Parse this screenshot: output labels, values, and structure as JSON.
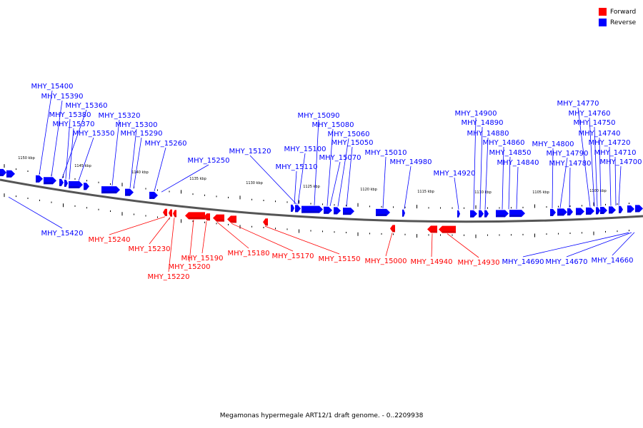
{
  "caption": "Megamonas hypermegale ART12/1 draft genome. - 0..2209938",
  "legend": [
    {
      "label": "Forward",
      "color": "#ff0000"
    },
    {
      "label": "Reverse",
      "color": "#0000ff"
    }
  ],
  "colors": {
    "forward": "#ff0000",
    "forward_dark": "#c80000",
    "reverse": "#0000ff",
    "reverse_dark": "#0000b4",
    "backbone": "#555555"
  },
  "kbp_labels": [
    "1150 kbp",
    "1145 kbp",
    "1140 kbp",
    "1135 kbp",
    "1130 kbp",
    "1125 kbp",
    "1120 kbp",
    "1115 kbp",
    "1110 kbp",
    "1105 kbp",
    "1100 kbp"
  ],
  "labels_above": [
    "MHY_15400",
    "MHY_15390",
    "MHY_15360",
    "MHY_15380",
    "MHY_15370",
    "MHY_15350",
    "MHY_15320",
    "MHY_15300",
    "MHY_15290",
    "MHY_15260",
    "MHY_15250",
    "MHY_15120",
    "MHY_15090",
    "MHY_15080",
    "MHY_15060",
    "MHY_15050",
    "MHY_15100",
    "MHY_15070",
    "MHY_15110",
    "MHY_15010",
    "MHY_14980",
    "MHY_14920",
    "MHY_14900",
    "MHY_14890",
    "MHY_14880",
    "MHY_14860",
    "MHY_14850",
    "MHY_14840",
    "MHY_14800",
    "MHY_14790",
    "MHY_14780",
    "MHY_14770",
    "MHY_14760",
    "MHY_14750",
    "MHY_14740",
    "MHY_14720",
    "MHY_14710",
    "MHY_14700"
  ],
  "labels_below_reverse": [
    "MHY_15420",
    "MHY_14690",
    "MHY_14670",
    "MHY_14660"
  ],
  "labels_below_forward": [
    "MHY_15240",
    "MHY_15230",
    "MHY_15220",
    "MHY_15200",
    "MHY_15190",
    "MHY_15180",
    "MHY_15170",
    "MHY_15150",
    "MHY_15000",
    "MHY_14940",
    "MHY_14930"
  ]
}
